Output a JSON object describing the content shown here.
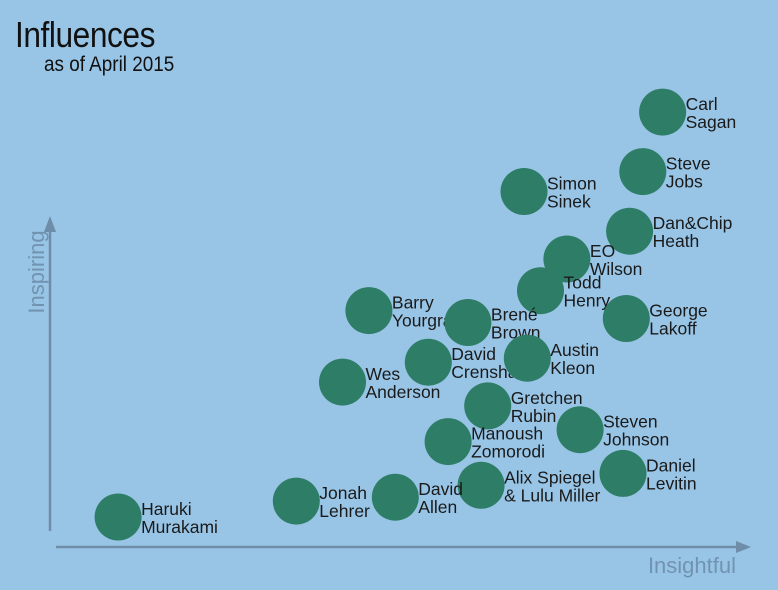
{
  "chart_data": {
    "type": "scatter",
    "title": "Influences",
    "subtitle": "as of April 2015",
    "xlabel": "Insightful",
    "ylabel": "Inspiring",
    "xlim": [
      0,
      100
    ],
    "ylim": [
      0,
      100
    ],
    "grid": false,
    "legend": "none",
    "point_color": "#2e7d66",
    "axis_color": "#6e8da8",
    "points": [
      {
        "label": [
          "Carl",
          "Sagan"
        ],
        "x": 91.0,
        "y": 103.0
      },
      {
        "label": [
          "Steve",
          "Jobs"
        ],
        "x": 88.0,
        "y": 88.0
      },
      {
        "label": [
          "Simon",
          "Sinek"
        ],
        "x": 70.0,
        "y": 83.0
      },
      {
        "label": [
          "Dan&Chip",
          "Heath"
        ],
        "x": 86.0,
        "y": 73.0
      },
      {
        "label": [
          "EO",
          "Wilson"
        ],
        "x": 76.5,
        "y": 66.0
      },
      {
        "label": [
          "Todd",
          "Henry"
        ],
        "x": 72.5,
        "y": 58.0
      },
      {
        "label": [
          "Barry",
          "Yourgrau"
        ],
        "x": 46.5,
        "y": 53.0
      },
      {
        "label": [
          "Brené",
          "Brown"
        ],
        "x": 61.5,
        "y": 50.0
      },
      {
        "label": [
          "George",
          "Lakoff"
        ],
        "x": 85.5,
        "y": 51.0
      },
      {
        "label": [
          "David",
          "Crenshaw"
        ],
        "x": 55.5,
        "y": 40.0
      },
      {
        "label": [
          "Austin",
          "Kleon"
        ],
        "x": 70.5,
        "y": 41.0
      },
      {
        "label": [
          "Wes",
          "Anderson"
        ],
        "x": 42.5,
        "y": 35.0
      },
      {
        "label": [
          "Gretchen",
          "Rubin"
        ],
        "x": 64.5,
        "y": 29.0
      },
      {
        "label": [
          "Steven",
          "Johnson"
        ],
        "x": 78.5,
        "y": 23.0
      },
      {
        "label": [
          "Manoush",
          "Zomorodi"
        ],
        "x": 58.5,
        "y": 20.0
      },
      {
        "label": [
          "Daniel",
          "Levitin"
        ],
        "x": 85.0,
        "y": 12.0
      },
      {
        "label": [
          "Alix Spiegel",
          "& Lulu Miller"
        ],
        "x": 63.5,
        "y": 9.0
      },
      {
        "label": [
          "David",
          "Allen"
        ],
        "x": 50.5,
        "y": 6.0
      },
      {
        "label": [
          "Jonah",
          "Lehrer"
        ],
        "x": 35.5,
        "y": 5.0
      },
      {
        "label": [
          "Haruki",
          "Murakami"
        ],
        "x": 8.5,
        "y": 1.0
      }
    ]
  }
}
